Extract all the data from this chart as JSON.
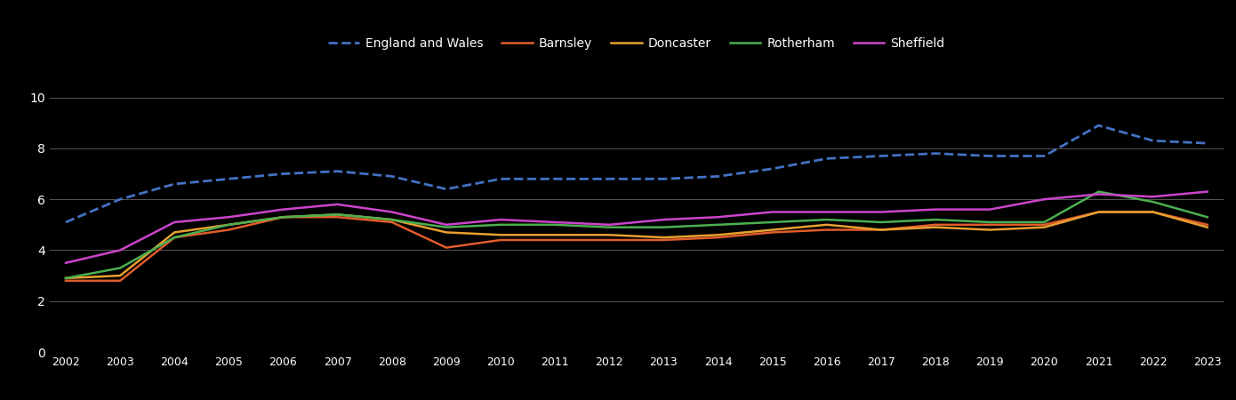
{
  "years": [
    2002,
    2003,
    2004,
    2005,
    2006,
    2007,
    2008,
    2009,
    2010,
    2011,
    2012,
    2013,
    2014,
    2015,
    2016,
    2017,
    2018,
    2019,
    2020,
    2021,
    2022,
    2023
  ],
  "england_wales": [
    5.1,
    6.0,
    6.6,
    6.8,
    7.0,
    7.1,
    6.9,
    6.4,
    6.8,
    6.8,
    6.8,
    6.8,
    6.9,
    7.2,
    7.6,
    7.7,
    7.8,
    7.7,
    7.7,
    8.9,
    8.3,
    8.2
  ],
  "barnsley": [
    2.8,
    2.8,
    4.5,
    4.8,
    5.3,
    5.3,
    5.1,
    4.1,
    4.4,
    4.4,
    4.4,
    4.4,
    4.5,
    4.7,
    4.8,
    4.8,
    5.0,
    5.0,
    5.0,
    5.5,
    5.5,
    5.0
  ],
  "doncaster": [
    2.9,
    3.0,
    4.7,
    5.0,
    5.3,
    5.4,
    5.2,
    4.7,
    4.6,
    4.6,
    4.6,
    4.5,
    4.6,
    4.8,
    5.0,
    4.8,
    4.9,
    4.8,
    4.9,
    5.5,
    5.5,
    4.9
  ],
  "rotherham": [
    2.9,
    3.3,
    4.5,
    5.0,
    5.3,
    5.4,
    5.2,
    4.9,
    5.0,
    5.0,
    4.9,
    4.9,
    5.0,
    5.1,
    5.2,
    5.1,
    5.2,
    5.1,
    5.1,
    6.3,
    5.9,
    5.3
  ],
  "sheffield": [
    3.5,
    4.0,
    5.1,
    5.3,
    5.6,
    5.8,
    5.5,
    5.0,
    5.2,
    5.1,
    5.0,
    5.2,
    5.3,
    5.5,
    5.5,
    5.5,
    5.6,
    5.6,
    6.0,
    6.2,
    6.1,
    6.3
  ],
  "colors": {
    "england_wales": "#4472c4",
    "barnsley": "#e05c2a",
    "doncaster": "#e8a030",
    "rotherham": "#4caf50",
    "sheffield": "#cc44cc"
  },
  "background_color": "#000000",
  "text_color": "#ffffff",
  "grid_color": "#555555",
  "ylim": [
    0,
    11
  ],
  "yticks": [
    0,
    2,
    4,
    6,
    8,
    10
  ]
}
